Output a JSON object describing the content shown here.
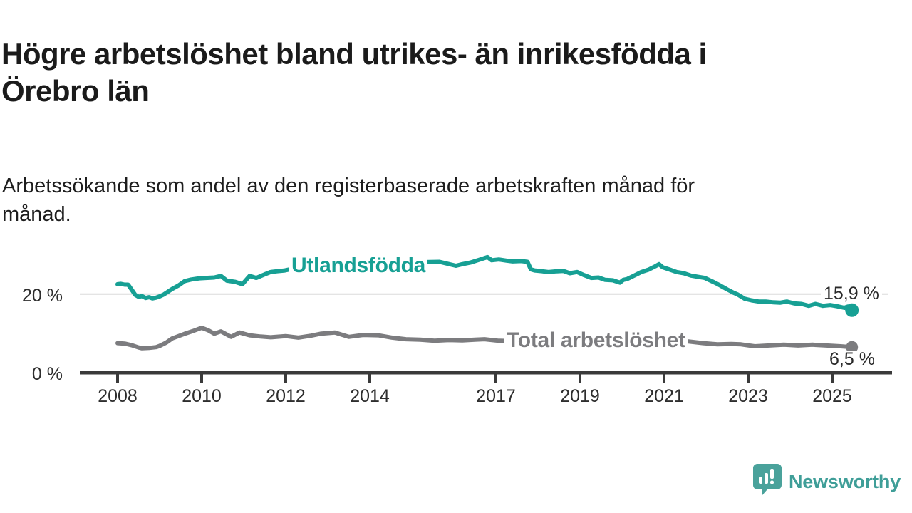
{
  "header": {
    "title_line1": "Högre arbetslöshet bland utrikes- än inrikesfödda i",
    "title_line2": "Örebro län",
    "subtitle_line1": "Arbetssökande som andel av den registerbaserade arbetskraften månad för",
    "subtitle_line2": "månad."
  },
  "footer": {
    "brand_name": "Newsworthy",
    "brand_color": "#3f9e98",
    "logo_icon": "speech-bubble-bar-chart-icon"
  },
  "colors": {
    "background": "#ffffff",
    "axis": "#3a3a3a",
    "gridline": "#dcdcdc",
    "tick_text": "#2e2e2e",
    "title_text": "#1b1b1b"
  },
  "chart_data": {
    "type": "line",
    "title": "Högre arbetslöshet bland utrikes- än inrikesfödda i Örebro län",
    "subtitle": "Arbetssökande som andel av den registerbaserade arbetskraften månad för månad.",
    "xlabel": "",
    "ylabel": "",
    "x_unit": "year (monthly data)",
    "y_unit": "%",
    "xlim": [
      2007.9,
      2026.3
    ],
    "ylim": [
      0,
      32
    ],
    "grid": "horizontal line at 20% only",
    "legend_position": "inline labels on lines",
    "x_axis": {
      "ticks": [
        {
          "year": 2008,
          "label": "2008"
        },
        {
          "year": 2010,
          "label": "2010"
        },
        {
          "year": 2012,
          "label": "2012"
        },
        {
          "year": 2014,
          "label": "2014"
        },
        {
          "year": 2017,
          "label": "2017"
        },
        {
          "year": 2019,
          "label": "2019"
        },
        {
          "year": 2021,
          "label": "2021"
        },
        {
          "year": 2023,
          "label": "2023"
        },
        {
          "year": 2025,
          "label": "2025"
        }
      ]
    },
    "y_axis": {
      "ticks": [
        {
          "value": 0,
          "label": "0 %"
        },
        {
          "value": 20,
          "label": "20 %"
        }
      ]
    },
    "series": [
      {
        "name": "Utlandsfödda",
        "color": "#17a094",
        "end_value_label": "15,9 %",
        "end_value": 15.9,
        "points": [
          [
            2008.0,
            22.5
          ],
          [
            2008.08,
            22.6
          ],
          [
            2008.17,
            22.4
          ],
          [
            2008.25,
            22.4
          ],
          [
            2008.33,
            21.2
          ],
          [
            2008.42,
            19.8
          ],
          [
            2008.5,
            19.3
          ],
          [
            2008.58,
            19.5
          ],
          [
            2008.67,
            19.0
          ],
          [
            2008.75,
            19.2
          ],
          [
            2008.83,
            18.9
          ],
          [
            2008.92,
            19.1
          ],
          [
            2009.0,
            19.4
          ],
          [
            2009.1,
            19.9
          ],
          [
            2009.2,
            20.6
          ],
          [
            2009.3,
            21.3
          ],
          [
            2009.45,
            22.2
          ],
          [
            2009.6,
            23.3
          ],
          [
            2009.75,
            23.7
          ],
          [
            2009.95,
            24.0
          ],
          [
            2010.1,
            24.1
          ],
          [
            2010.3,
            24.2
          ],
          [
            2010.46,
            24.6
          ],
          [
            2010.6,
            23.4
          ],
          [
            2010.8,
            23.1
          ],
          [
            2010.97,
            22.5
          ],
          [
            2011.14,
            24.6
          ],
          [
            2011.3,
            24.1
          ],
          [
            2011.5,
            25.0
          ],
          [
            2011.64,
            25.6
          ],
          [
            2011.8,
            25.8
          ],
          [
            2011.98,
            26.0
          ],
          [
            2012.15,
            26.4
          ],
          [
            2012.32,
            26.9
          ],
          [
            2012.5,
            25.7
          ],
          [
            2012.7,
            26.2
          ],
          [
            2013.0,
            26.7
          ],
          [
            2013.3,
            27.0
          ],
          [
            2013.6,
            27.2
          ],
          [
            2014.0,
            27.4
          ],
          [
            2014.4,
            27.7
          ],
          [
            2014.8,
            27.9
          ],
          [
            2015.2,
            28.1
          ],
          [
            2015.66,
            28.2
          ],
          [
            2016.05,
            27.2
          ],
          [
            2016.2,
            27.6
          ],
          [
            2016.39,
            28.0
          ],
          [
            2016.6,
            28.7
          ],
          [
            2016.8,
            29.4
          ],
          [
            2016.9,
            28.6
          ],
          [
            2017.07,
            28.8
          ],
          [
            2017.25,
            28.5
          ],
          [
            2017.4,
            28.3
          ],
          [
            2017.6,
            28.4
          ],
          [
            2017.75,
            28.2
          ],
          [
            2017.83,
            26.3
          ],
          [
            2017.92,
            26.0
          ],
          [
            2018.1,
            25.8
          ],
          [
            2018.25,
            25.6
          ],
          [
            2018.45,
            25.8
          ],
          [
            2018.6,
            25.9
          ],
          [
            2018.76,
            25.3
          ],
          [
            2018.93,
            25.6
          ],
          [
            2019.1,
            24.8
          ],
          [
            2019.27,
            24.1
          ],
          [
            2019.44,
            24.2
          ],
          [
            2019.6,
            23.6
          ],
          [
            2019.78,
            23.5
          ],
          [
            2019.95,
            22.9
          ],
          [
            2020.03,
            23.6
          ],
          [
            2020.12,
            23.8
          ],
          [
            2020.29,
            24.7
          ],
          [
            2020.46,
            25.6
          ],
          [
            2020.63,
            26.2
          ],
          [
            2020.8,
            27.1
          ],
          [
            2020.88,
            27.6
          ],
          [
            2020.97,
            26.8
          ],
          [
            2021.14,
            26.2
          ],
          [
            2021.3,
            25.6
          ],
          [
            2021.47,
            25.3
          ],
          [
            2021.64,
            24.7
          ],
          [
            2021.8,
            24.4
          ],
          [
            2021.97,
            24.1
          ],
          [
            2022.15,
            23.2
          ],
          [
            2022.3,
            22.4
          ],
          [
            2022.5,
            21.2
          ],
          [
            2022.66,
            20.3
          ],
          [
            2022.75,
            19.9
          ],
          [
            2022.92,
            18.8
          ],
          [
            2023.08,
            18.4
          ],
          [
            2023.25,
            18.1
          ],
          [
            2023.42,
            18.1
          ],
          [
            2023.6,
            17.9
          ],
          [
            2023.76,
            17.8
          ],
          [
            2023.92,
            18.1
          ],
          [
            2024.1,
            17.6
          ],
          [
            2024.27,
            17.5
          ],
          [
            2024.44,
            17.0
          ],
          [
            2024.6,
            17.5
          ],
          [
            2024.78,
            17.0
          ],
          [
            2024.95,
            17.2
          ],
          [
            2025.12,
            16.9
          ],
          [
            2025.29,
            16.5
          ],
          [
            2025.37,
            16.8
          ],
          [
            2025.47,
            15.9
          ]
        ]
      },
      {
        "name": "Total arbetslöshet",
        "color": "#7c7c7f",
        "end_value_label": "6,5 %",
        "end_value": 6.5,
        "points": [
          [
            2008.0,
            7.5
          ],
          [
            2008.17,
            7.4
          ],
          [
            2008.33,
            7.0
          ],
          [
            2008.5,
            6.4
          ],
          [
            2008.58,
            6.2
          ],
          [
            2008.75,
            6.3
          ],
          [
            2008.92,
            6.5
          ],
          [
            2009.0,
            6.8
          ],
          [
            2009.15,
            7.6
          ],
          [
            2009.3,
            8.7
          ],
          [
            2009.6,
            9.9
          ],
          [
            2009.8,
            10.6
          ],
          [
            2010.0,
            11.4
          ],
          [
            2010.15,
            10.8
          ],
          [
            2010.3,
            9.9
          ],
          [
            2010.46,
            10.5
          ],
          [
            2010.7,
            9.1
          ],
          [
            2010.9,
            10.2
          ],
          [
            2011.14,
            9.5
          ],
          [
            2011.4,
            9.2
          ],
          [
            2011.64,
            9.0
          ],
          [
            2012.0,
            9.3
          ],
          [
            2012.3,
            8.9
          ],
          [
            2012.6,
            9.4
          ],
          [
            2012.83,
            9.9
          ],
          [
            2013.17,
            10.2
          ],
          [
            2013.5,
            9.1
          ],
          [
            2013.85,
            9.6
          ],
          [
            2014.2,
            9.5
          ],
          [
            2014.53,
            8.9
          ],
          [
            2014.86,
            8.5
          ],
          [
            2015.2,
            8.4
          ],
          [
            2015.54,
            8.1
          ],
          [
            2015.88,
            8.3
          ],
          [
            2016.2,
            8.2
          ],
          [
            2016.5,
            8.4
          ],
          [
            2016.73,
            8.5
          ],
          [
            2017.07,
            8.1
          ],
          [
            2017.5,
            8.0
          ],
          [
            2018.0,
            7.9
          ],
          [
            2018.5,
            7.8
          ],
          [
            2019.0,
            7.6
          ],
          [
            2019.5,
            7.5
          ],
          [
            2020.0,
            7.8
          ],
          [
            2020.4,
            8.6
          ],
          [
            2020.8,
            8.8
          ],
          [
            2021.2,
            8.4
          ],
          [
            2021.6,
            7.9
          ],
          [
            2021.93,
            7.5
          ],
          [
            2022.27,
            7.2
          ],
          [
            2022.6,
            7.3
          ],
          [
            2022.83,
            7.2
          ],
          [
            2023.16,
            6.7
          ],
          [
            2023.5,
            6.9
          ],
          [
            2023.85,
            7.1
          ],
          [
            2024.19,
            6.9
          ],
          [
            2024.53,
            7.1
          ],
          [
            2024.86,
            6.9
          ],
          [
            2025.2,
            6.7
          ],
          [
            2025.47,
            6.5
          ]
        ]
      }
    ]
  }
}
